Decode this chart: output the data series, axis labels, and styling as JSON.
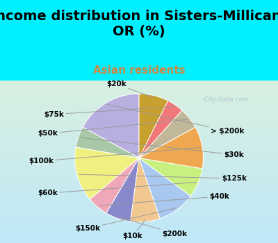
{
  "title": "Income distribution in Sisters-Millican,\nOR (%)",
  "subtitle": "Asian residents",
  "labels": [
    "> $200k",
    "$30k",
    "$125k",
    "$40k",
    "$200k",
    "$10k",
    "$150k",
    "$60k",
    "$100k",
    "$50k",
    "$75k",
    "$20k"
  ],
  "values": [
    16,
    5,
    13,
    5,
    6,
    7,
    9,
    7,
    10,
    5,
    4,
    7
  ],
  "colors": [
    "#b8aee0",
    "#a8c8a8",
    "#f0f080",
    "#f0a8b8",
    "#8888cc",
    "#f0c890",
    "#a8c8f0",
    "#c8f080",
    "#f0a850",
    "#c0b898",
    "#f07878",
    "#c8a030"
  ],
  "background_color": "#00f0ff",
  "chart_bg_top": "#e8f8f0",
  "chart_bg_bottom": "#c8e8f8",
  "title_fontsize": 14,
  "subtitle_fontsize": 11,
  "subtitle_color": "#cc8844",
  "label_fontsize": 7.5,
  "watermark": "  City-Data.com"
}
